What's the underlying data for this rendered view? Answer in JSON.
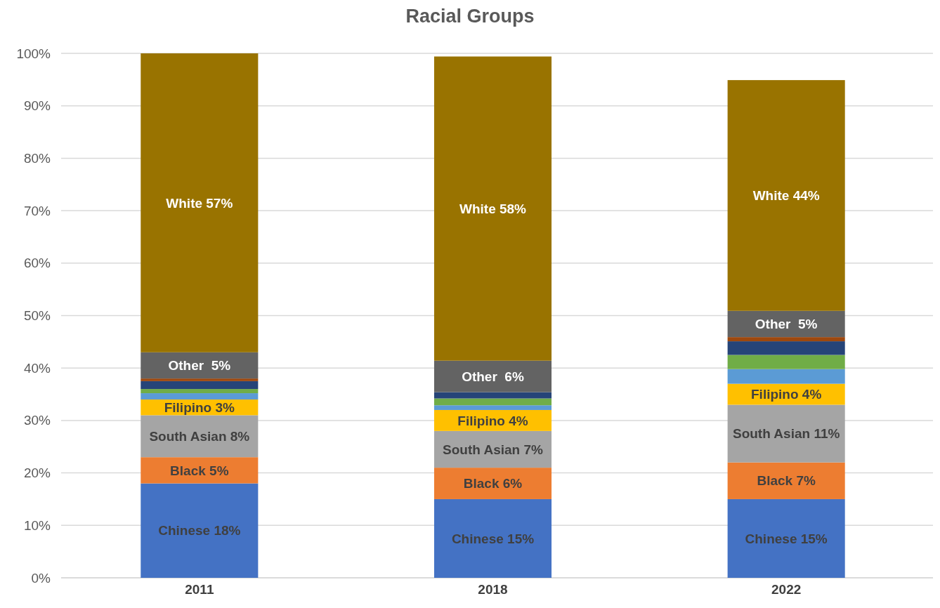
{
  "chart_data": {
    "type": "bar",
    "title": "Racial Groups",
    "stacked": true,
    "categories": [
      "2011",
      "2018",
      "2022"
    ],
    "ylim": [
      0,
      100
    ],
    "yticks": [
      {
        "value": 0,
        "label": "0%"
      },
      {
        "value": 10,
        "label": "10%"
      },
      {
        "value": 20,
        "label": "20%"
      },
      {
        "value": 30,
        "label": "30%"
      },
      {
        "value": 40,
        "label": "40%"
      },
      {
        "value": 50,
        "label": "50%"
      },
      {
        "value": 60,
        "label": "60%"
      },
      {
        "value": 70,
        "label": "70%"
      },
      {
        "value": 80,
        "label": "80%"
      },
      {
        "value": 90,
        "label": "90%"
      },
      {
        "value": 100,
        "label": "100%"
      }
    ],
    "grid": "y",
    "series": [
      {
        "color": "#4472c4",
        "values": [
          18,
          15,
          15
        ],
        "value_labels": [
          "Chinese 18%",
          "Chinese 15%",
          "Chinese 15%"
        ]
      },
      {
        "color": "#ed7d31",
        "values": [
          5,
          6,
          7
        ],
        "value_labels": [
          "Black 5%",
          "Black 6%",
          "Black 7%"
        ]
      },
      {
        "color": "#a5a5a5",
        "values": [
          8,
          7,
          11
        ],
        "value_labels": [
          "South Asian 8%",
          "South Asian 7%",
          "South Asian 11%"
        ]
      },
      {
        "color": "#ffc000",
        "values": [
          3,
          4,
          4
        ],
        "value_labels": [
          "Filipino 3%",
          "Filipino 4%",
          "Filipino 4%"
        ]
      },
      {
        "color": "#5b9bd5",
        "values": [
          1.2,
          0.9,
          2.8
        ]
      },
      {
        "color": "#70ad47",
        "values": [
          0.8,
          1.3,
          2.7
        ]
      },
      {
        "color": "#264478",
        "values": [
          1.5,
          1.2,
          2.6
        ]
      },
      {
        "color": "#9e480e",
        "values": [
          0.5,
          0,
          0.8
        ]
      },
      {
        "color": "#636363",
        "values": [
          5,
          6,
          5
        ],
        "value_labels": [
          "Other  5%",
          "Other  6%",
          "Other  5%"
        ]
      },
      {
        "color": "#997300",
        "values": [
          57,
          58,
          44
        ],
        "value_labels": [
          "White 57%",
          "White 58%",
          "White 44%"
        ]
      }
    ]
  }
}
